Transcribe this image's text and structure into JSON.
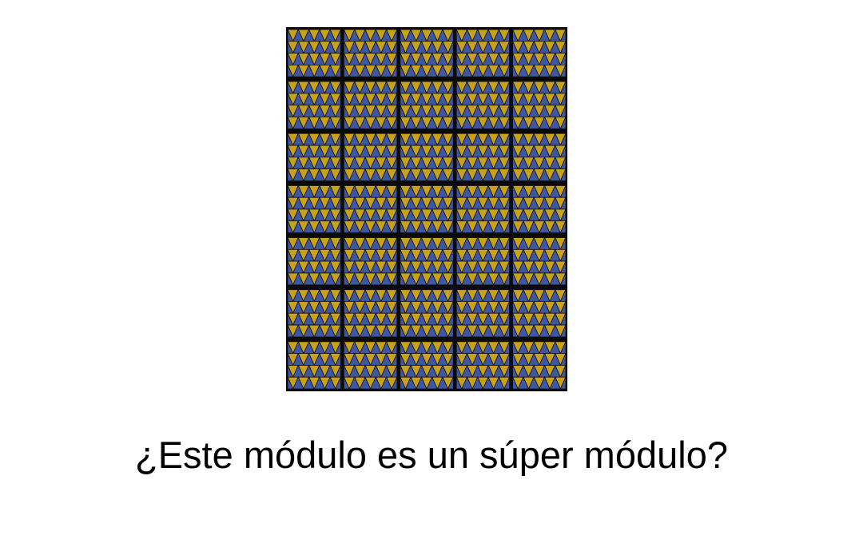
{
  "slide": {
    "question": "¿Este módulo es un súper módulo?"
  },
  "pattern": {
    "icon": "zigzag-triangle-tessellation",
    "columns": 5,
    "rows": 7,
    "triangle_rows_per_block": 4,
    "triangles_per_row": 5,
    "colors": {
      "background": "#0a0a0a",
      "gold": "#c9a21c",
      "blue": "#3d56a6",
      "outline": "#111111"
    }
  }
}
